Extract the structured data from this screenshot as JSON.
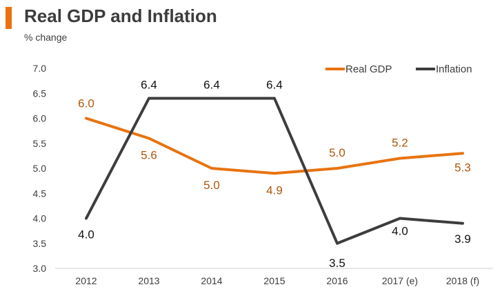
{
  "header": {
    "title": "Real GDP and Inflation",
    "subtitle": "% change"
  },
  "colors": {
    "accent": "#e8730f",
    "gdp": "#e8730f",
    "inflation": "#3d3d3d"
  },
  "chart_data": {
    "type": "line",
    "title": "Real GDP and Inflation",
    "ylabel": "% change",
    "xlabel": "",
    "categories": [
      "2012",
      "2013",
      "2014",
      "2015",
      "2016",
      "2017 (e)",
      "2018 (f)"
    ],
    "ylim": [
      3.0,
      7.0
    ],
    "yticks": [
      "3.0",
      "3.5",
      "4.0",
      "4.5",
      "5.0",
      "5.5",
      "6.0",
      "6.5",
      "7.0"
    ],
    "legend_position": "top-right",
    "series": [
      {
        "name": "Real GDP",
        "values": [
          6.0,
          5.6,
          5.0,
          4.9,
          5.0,
          5.2,
          5.3
        ],
        "labels": [
          "6.0",
          "5.6",
          "5.0",
          "4.9",
          "5.0",
          "5.2",
          "5.3"
        ]
      },
      {
        "name": "Inflation",
        "values": [
          4.0,
          6.4,
          6.4,
          6.4,
          3.5,
          4.0,
          3.9
        ],
        "labels": [
          "4.0",
          "6.4",
          "6.4",
          "6.4",
          "3.5",
          "4.0",
          "3.9"
        ]
      }
    ]
  }
}
